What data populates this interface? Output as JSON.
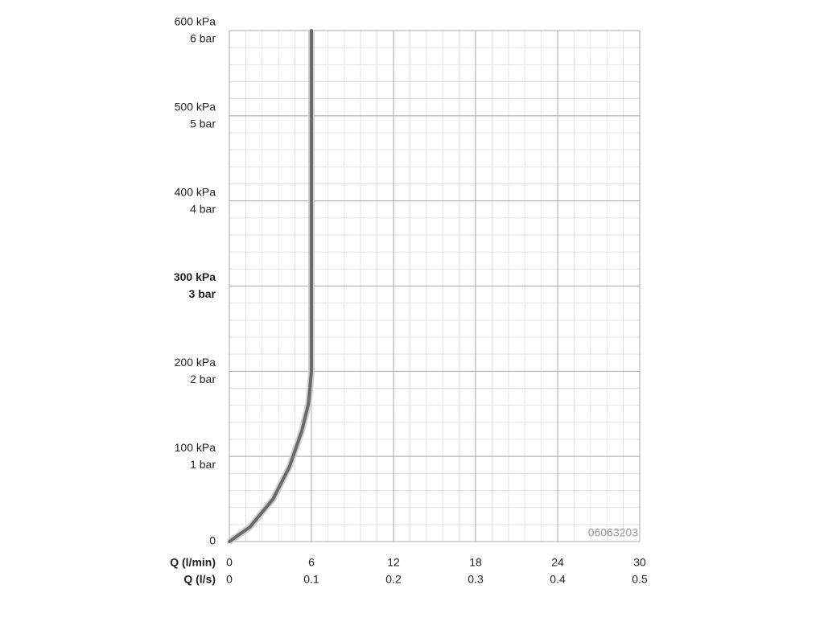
{
  "chart_data": {
    "type": "line",
    "x": [
      0,
      1.5,
      3.2,
      4.4,
      5.3,
      5.8,
      6,
      6
    ],
    "values": [
      0,
      17,
      50,
      88,
      130,
      163,
      200,
      600
    ],
    "color": "#6a6a6a",
    "xlabel": "Q (l/min)",
    "x2label": "Q (l/s)",
    "xlim": [
      0,
      30
    ],
    "xticks": [
      0,
      6,
      12,
      18,
      24,
      30
    ],
    "x2lim": [
      0,
      0.5
    ],
    "x2ticks": [
      0,
      0.1,
      0.2,
      0.3,
      0.4,
      0.5
    ],
    "ylim": [
      0,
      600
    ],
    "yticks": [
      0,
      {
        "value": 100,
        "label": "100 kPa"
      },
      {
        "value": 200,
        "label": "200 kPa"
      },
      {
        "value": 300,
        "label": "300 kPa"
      },
      {
        "value": 400,
        "label": "400 kPa"
      },
      {
        "value": 500,
        "label": "500 kPa"
      },
      {
        "value": 600,
        "label": "600 kPa"
      }
    ],
    "yticks_bar": [
      {
        "value": 100,
        "label": "1 bar"
      },
      {
        "value": 200,
        "label": "2 bar"
      },
      {
        "value": 300,
        "label": "3 bar"
      },
      {
        "value": 400,
        "label": "4 bar"
      },
      {
        "value": 500,
        "label": "5 bar"
      },
      {
        "value": 600,
        "label": "6 bar"
      }
    ],
    "bold_ytick_value": 300,
    "grid": true,
    "grid_minor": {
      "x": 1.2,
      "y": 20
    },
    "annotation": "06063203"
  }
}
